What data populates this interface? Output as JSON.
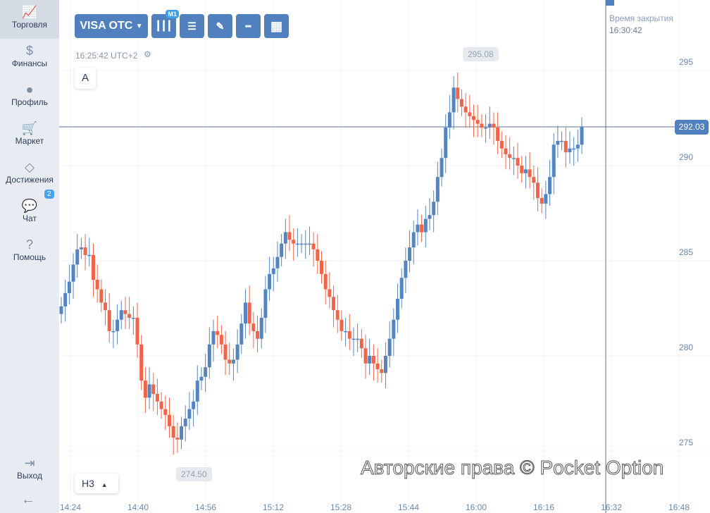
{
  "sidebar": {
    "items": [
      {
        "label": "Торговля",
        "icon": "chart-line-icon",
        "glyph": "📈"
      },
      {
        "label": "Финансы",
        "icon": "dollar-icon",
        "glyph": "$"
      },
      {
        "label": "Профиль",
        "icon": "user-icon",
        "glyph": "●"
      },
      {
        "label": "Маркет",
        "icon": "cart-icon",
        "glyph": "🛒"
      },
      {
        "label": "Достижения",
        "icon": "diamond-icon",
        "glyph": "◇"
      },
      {
        "label": "Чат",
        "icon": "chat-icon",
        "glyph": "💬",
        "badge": "2"
      },
      {
        "label": "Помощь",
        "icon": "help-icon",
        "glyph": "?"
      }
    ],
    "logout": "Выход",
    "collapse_glyph": "←"
  },
  "toolbar": {
    "asset": "VISA OTC",
    "timeframe_badge": "M1"
  },
  "clock": "16:25:42 UTC+2",
  "drawing_label": "A",
  "timeframe_select": "H3",
  "close_time": {
    "label": "Время закрытия",
    "value": "16:30:42"
  },
  "current_price": "292.03",
  "high_label": "295.08",
  "low_label": "274.50",
  "watermark": "Авторские права © Pocket Option",
  "colors": {
    "up": "#5585c0",
    "down": "#f0654a",
    "accent": "#5080bd"
  },
  "chart_data": {
    "type": "candlestick",
    "y_ticks": [
      "295",
      "290",
      "285",
      "280",
      "275"
    ],
    "x_ticks": [
      "14:24",
      "14:40",
      "14:56",
      "15:12",
      "15:28",
      "15:44",
      "16:00",
      "16:16",
      "16:32",
      "16:48"
    ],
    "ylim": [
      273.3,
      296.8
    ],
    "start_open": 282.2,
    "closes": [
      282.6,
      283.3,
      283.9,
      284.8,
      285.6,
      285.7,
      285.3,
      285.3,
      284.0,
      283.5,
      282.8,
      282.4,
      281.3,
      281.3,
      281.9,
      282.4,
      282.2,
      282.0,
      282.0,
      280.6,
      278.7,
      277.8,
      278.5,
      278.0,
      277.6,
      277.2,
      276.9,
      276.3,
      275.7,
      275.6,
      276.3,
      276.7,
      277.2,
      277.6,
      278.7,
      278.9,
      279.4,
      280.6,
      281.3,
      281.1,
      280.6,
      279.8,
      279.6,
      279.8,
      280.6,
      281.7,
      282.8,
      281.7,
      281.3,
      280.9,
      282.0,
      283.5,
      284.3,
      284.6,
      285.2,
      285.9,
      286.5,
      286.1,
      285.9,
      285.9,
      285.9,
      285.9,
      285.9,
      285.6,
      285.0,
      284.3,
      283.5,
      283.1,
      282.4,
      281.9,
      281.3,
      281.3,
      280.9,
      280.9,
      280.9,
      280.4,
      279.6,
      280.0,
      279.6,
      279.3,
      279.1,
      280.0,
      280.9,
      281.9,
      283.0,
      284.1,
      285.0,
      285.7,
      286.5,
      286.9,
      286.5,
      287.2,
      287.4,
      288.1,
      289.4,
      290.4,
      292.0,
      292.8,
      294.1,
      293.5,
      293.1,
      292.8,
      292.6,
      292.4,
      292.2,
      292.0,
      292.0,
      292.2,
      292.0,
      291.3,
      290.9,
      290.6,
      290.4,
      290.4,
      290.0,
      289.6,
      289.8,
      289.4,
      289.1,
      288.3,
      288.0,
      288.5,
      289.4,
      291.1,
      291.3,
      291.3,
      290.7,
      290.9,
      290.9,
      291.1,
      292.03
    ]
  }
}
